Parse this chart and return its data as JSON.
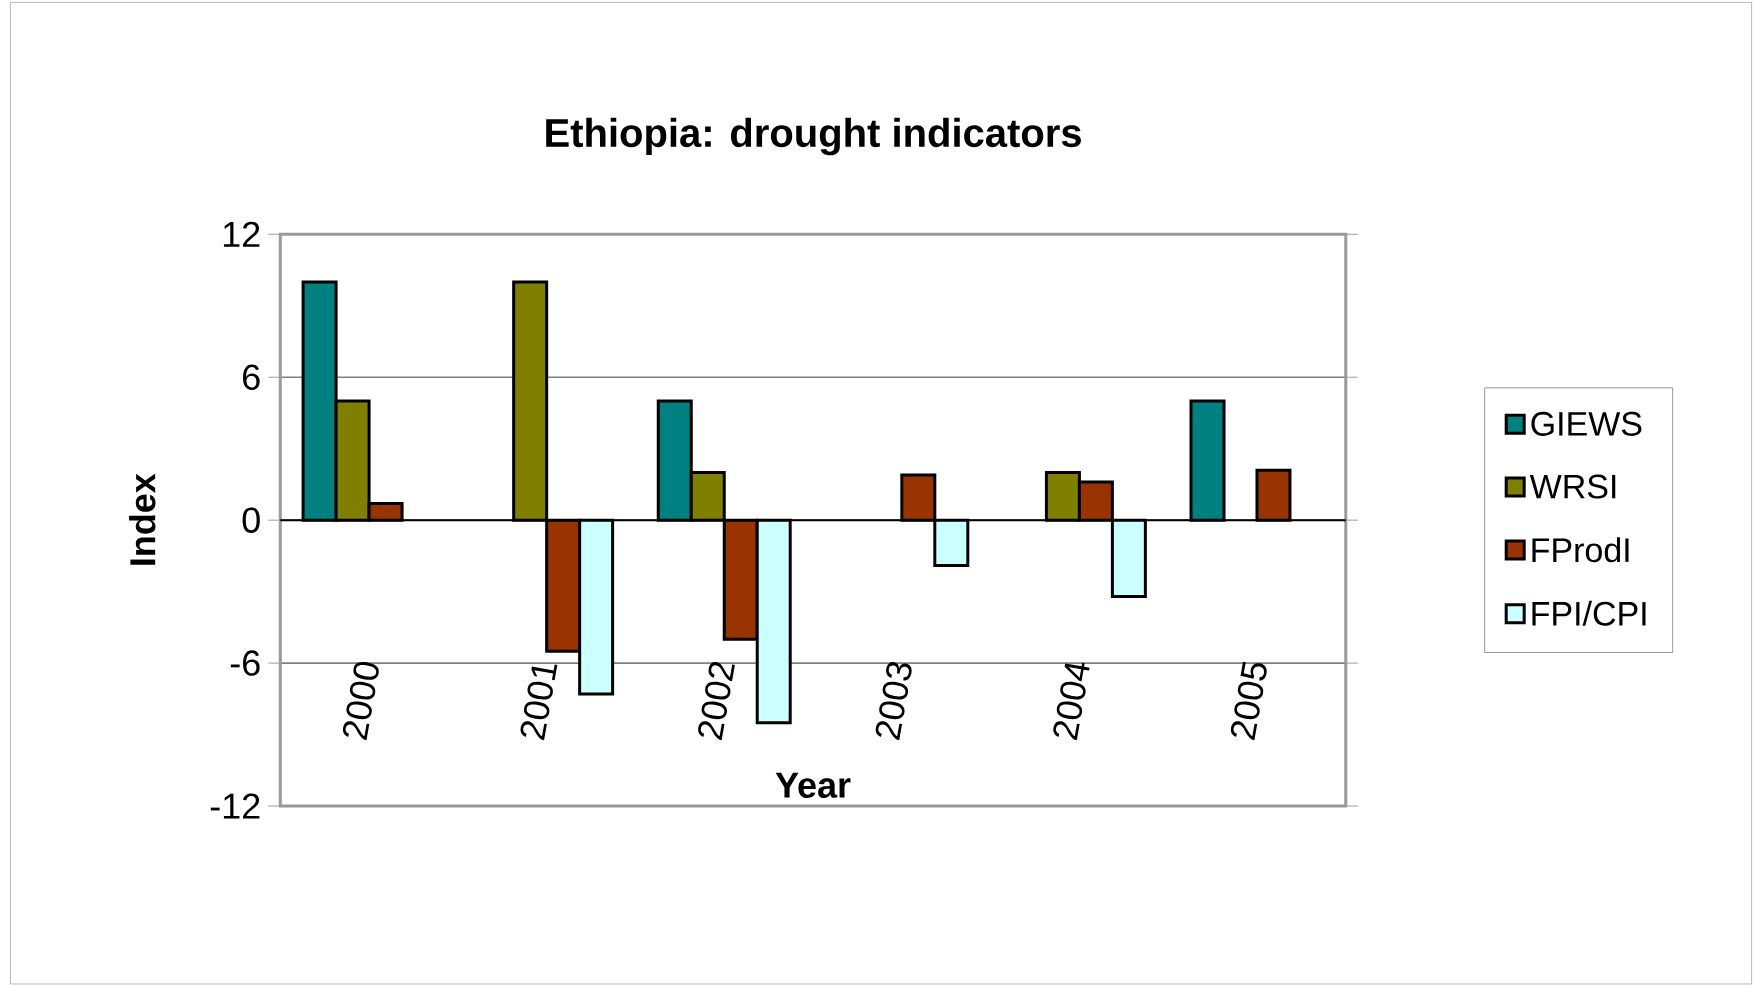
{
  "chart_data": {
    "type": "bar",
    "title": "Ethiopia: drought indicators",
    "xlabel": "Year",
    "ylabel": "Index",
    "categories": [
      "2000",
      "2001",
      "2002",
      "2003",
      "2004",
      "2005"
    ],
    "series": [
      {
        "name": "GIEWS",
        "color": "#008080",
        "values": [
          10,
          null,
          5,
          null,
          null,
          5
        ]
      },
      {
        "name": "WRSI",
        "color": "#808000",
        "values": [
          5,
          10,
          2,
          null,
          2,
          null
        ]
      },
      {
        "name": "FProdI",
        "color": "#993300",
        "values": [
          0.7,
          -5.5,
          -5,
          1.9,
          1.6,
          2.1
        ]
      },
      {
        "name": "FPI/CPI",
        "color": "#ccffff",
        "values": [
          null,
          -7.3,
          -8.5,
          -1.9,
          -3.2,
          null
        ]
      }
    ],
    "ylim": [
      -12,
      12
    ],
    "yticks": [
      -12,
      -6,
      0,
      6,
      12
    ],
    "grid": "y",
    "legend": "right"
  }
}
